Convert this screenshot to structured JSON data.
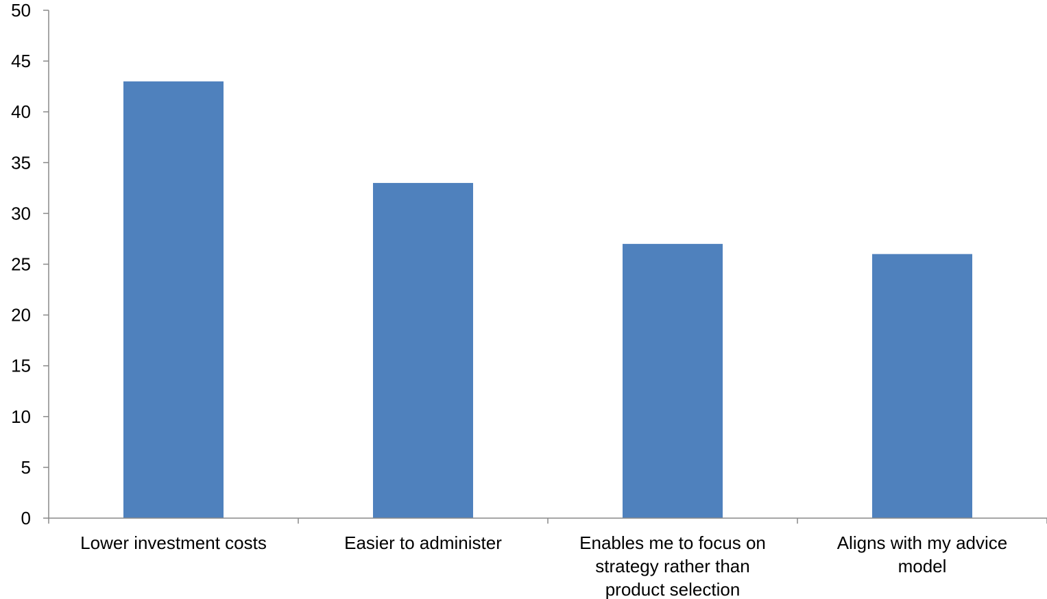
{
  "chart_data": {
    "type": "bar",
    "categories": [
      [
        "Lower investment costs"
      ],
      [
        "Easier to administer"
      ],
      [
        "Enables me to focus on",
        "strategy rather than",
        "product selection"
      ],
      [
        "Aligns with my advice",
        "model"
      ]
    ],
    "values": [
      43,
      33,
      27,
      26
    ],
    "title": "",
    "xlabel": "",
    "ylabel": "",
    "ylim": [
      0,
      50
    ],
    "yticks": [
      0,
      5,
      10,
      15,
      20,
      25,
      30,
      35,
      40,
      45,
      50
    ],
    "grid": false,
    "legend": "none",
    "bar_color": "#4f81bd"
  }
}
